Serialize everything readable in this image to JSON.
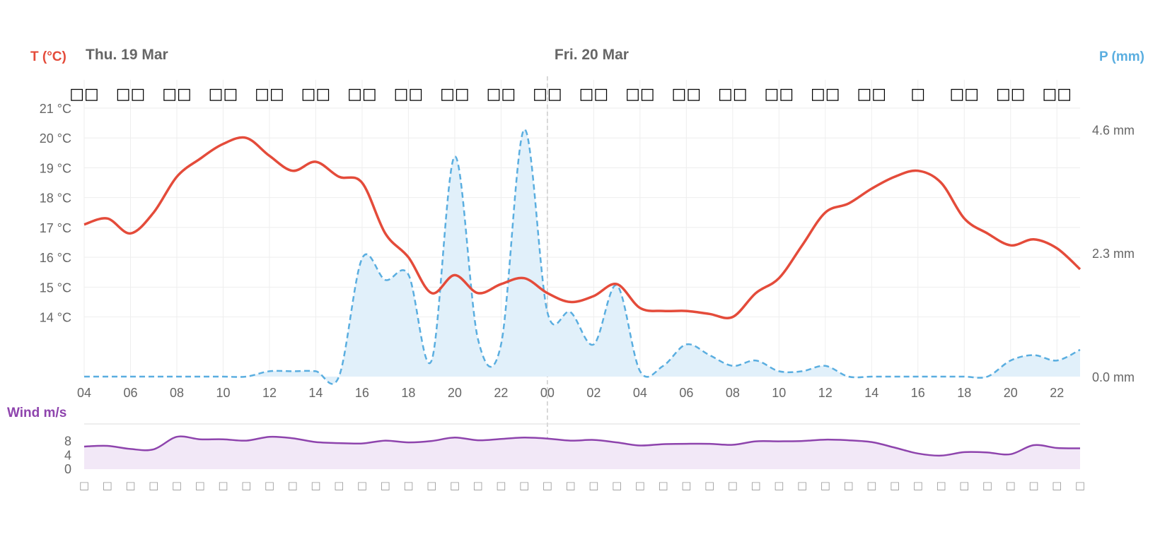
{
  "colors": {
    "temperature": "#e44b3a",
    "precipitation": "#5aaee0",
    "precipitation_fill": "#e1f0fa",
    "wind": "#8e44ad",
    "wind_fill": "#f2e8f7",
    "grid": "#eeeeee",
    "tick_text": "#666666",
    "day_text": "#666666"
  },
  "chart_data": [
    {
      "type": "line",
      "title": "",
      "days": [
        {
          "label": "Thu. 19 Mar",
          "at_hour": 4
        },
        {
          "label": "Fri. 20 Mar",
          "at_hour": 24
        }
      ],
      "hours": [
        4,
        5,
        6,
        7,
        8,
        9,
        10,
        11,
        12,
        13,
        14,
        15,
        16,
        17,
        18,
        19,
        20,
        21,
        22,
        23,
        24,
        25,
        26,
        27,
        28,
        29,
        30,
        31,
        32,
        33,
        34,
        35,
        36,
        37,
        38,
        39,
        40,
        41,
        42,
        43,
        44,
        45,
        46,
        47
      ],
      "x_tick_labels": [
        "04",
        "06",
        "08",
        "10",
        "12",
        "14",
        "16",
        "18",
        "20",
        "22",
        "00",
        "02",
        "04",
        "06",
        "08",
        "10",
        "12",
        "14",
        "16",
        "18",
        "20",
        "22"
      ],
      "weather_symbols": [
        "□□",
        "□□",
        "□□",
        "□□",
        "□□",
        "□□",
        "□□",
        "□□",
        "□□",
        "□□",
        "□□",
        "□□",
        "□□",
        "□□",
        "□□",
        "□□",
        "□□",
        "□□",
        "□",
        "□□",
        "□□",
        "□□"
      ],
      "y_left": {
        "title": "T (°C)",
        "tick_labels": [
          "14 °C",
          "15 °C",
          "16 °C",
          "17 °C",
          "18 °C",
          "19 °C",
          "20 °C",
          "21 °C"
        ],
        "ticks": [
          14,
          15,
          16,
          17,
          18,
          19,
          20,
          21
        ],
        "range": [
          12,
          21
        ]
      },
      "y_right": {
        "title": "P (mm)",
        "tick_labels": [
          "0.0 mm",
          "2.3 mm",
          "4.6 mm"
        ],
        "ticks": [
          0,
          2.3,
          4.6
        ],
        "range": [
          0,
          5.0
        ]
      },
      "series": [
        {
          "key": "temperature",
          "axis": "left",
          "style": "solid",
          "values": [
            17.1,
            17.3,
            16.8,
            17.5,
            18.7,
            19.3,
            19.8,
            20.0,
            19.4,
            18.9,
            19.2,
            18.7,
            18.5,
            16.8,
            16.0,
            14.8,
            15.4,
            14.8,
            15.1,
            15.3,
            14.8,
            14.5,
            14.7,
            15.1,
            14.3,
            14.2,
            14.2,
            14.1,
            14.0,
            14.8,
            15.3,
            16.4,
            17.5,
            17.8,
            18.3,
            18.7,
            18.9,
            18.5,
            17.3,
            16.8,
            16.4,
            16.6,
            16.3,
            15.6
          ]
        },
        {
          "key": "precipitation",
          "axis": "right",
          "style": "dashed-area",
          "values": [
            0,
            0,
            0,
            0,
            0,
            0,
            0,
            0,
            0.1,
            0.1,
            0.1,
            0,
            2.2,
            1.8,
            1.9,
            0.3,
            4.1,
            0.7,
            0.6,
            4.6,
            1.2,
            1.2,
            0.6,
            1.7,
            0.1,
            0.2,
            0.6,
            0.4,
            0.2,
            0.3,
            0.1,
            0.1,
            0.2,
            0,
            0,
            0,
            0,
            0,
            0,
            0,
            0.3,
            0.4,
            0.3,
            0.5
          ]
        }
      ]
    },
    {
      "type": "area",
      "title": "",
      "ylabel": "Wind m/s",
      "y_tick_labels": [
        "0",
        "4",
        "8"
      ],
      "ticks": [
        0,
        4,
        8
      ],
      "range": [
        0,
        13
      ],
      "hours": [
        4,
        5,
        6,
        7,
        8,
        9,
        10,
        11,
        12,
        13,
        14,
        15,
        16,
        17,
        18,
        19,
        20,
        21,
        22,
        23,
        24,
        25,
        26,
        27,
        28,
        29,
        30,
        31,
        32,
        33,
        34,
        35,
        36,
        37,
        38,
        39,
        40,
        41,
        42,
        43,
        44,
        45,
        46,
        47
      ],
      "values": [
        6.5,
        6.7,
        5.8,
        5.7,
        9.3,
        8.6,
        8.6,
        8.2,
        9.3,
        8.9,
        7.8,
        7.5,
        7.4,
        8.2,
        7.7,
        8.1,
        9.1,
        8.3,
        8.7,
        9.1,
        8.8,
        8.2,
        8.4,
        7.7,
        6.8,
        7.2,
        7.3,
        7.3,
        7.0,
        8.0,
        8.0,
        8.1,
        8.5,
        8.3,
        7.8,
        6.2,
        4.5,
        3.9,
        4.9,
        4.8,
        4.3,
        6.9,
        6.1,
        6.0
      ],
      "symbol_glyph": "□",
      "symbol_count": 44
    }
  ]
}
